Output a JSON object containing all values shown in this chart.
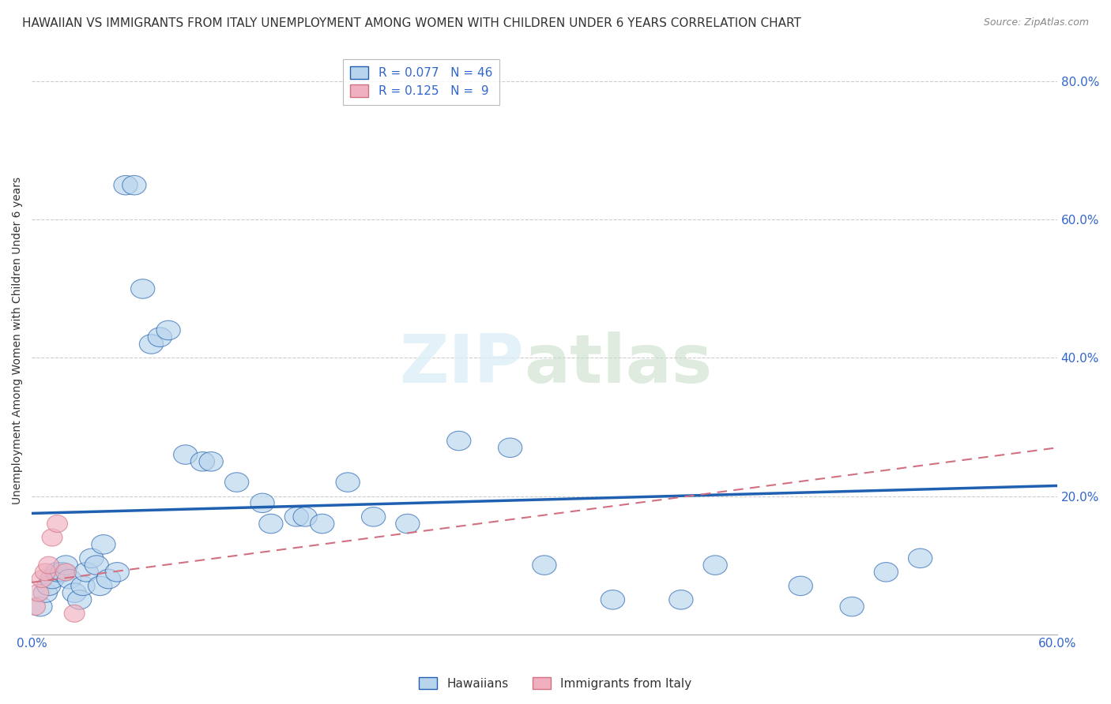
{
  "title": "HAWAIIAN VS IMMIGRANTS FROM ITALY UNEMPLOYMENT AMONG WOMEN WITH CHILDREN UNDER 6 YEARS CORRELATION CHART",
  "source": "Source: ZipAtlas.com",
  "ylabel": "Unemployment Among Women with Children Under 6 years",
  "xlim": [
    0.0,
    0.6
  ],
  "ylim": [
    0.0,
    0.85
  ],
  "yticks": [
    0.2,
    0.4,
    0.6,
    0.8
  ],
  "ytick_labels": [
    "20.0%",
    "40.0%",
    "60.0%",
    "80.0%"
  ],
  "r_hawaiian": 0.077,
  "n_hawaiian": 46,
  "r_italy": 0.125,
  "n_italy": 9,
  "hawaiian_color": "#b8d4ec",
  "italy_color": "#f0b0c0",
  "trend_hawaiian_color": "#2060b0",
  "trend_italy_color": "#d07080",
  "hawaiian_x": [
    0.005,
    0.008,
    0.01,
    0.012,
    0.015,
    0.018,
    0.02,
    0.022,
    0.025,
    0.028,
    0.03,
    0.032,
    0.035,
    0.038,
    0.04,
    0.042,
    0.045,
    0.05,
    0.055,
    0.06,
    0.065,
    0.07,
    0.075,
    0.08,
    0.09,
    0.1,
    0.105,
    0.12,
    0.135,
    0.14,
    0.155,
    0.16,
    0.17,
    0.185,
    0.2,
    0.22,
    0.25,
    0.28,
    0.3,
    0.34,
    0.38,
    0.4,
    0.45,
    0.48,
    0.5,
    0.52
  ],
  "hawaiian_y": [
    0.04,
    0.06,
    0.07,
    0.08,
    0.09,
    0.09,
    0.1,
    0.08,
    0.06,
    0.05,
    0.07,
    0.09,
    0.11,
    0.1,
    0.07,
    0.13,
    0.08,
    0.09,
    0.65,
    0.65,
    0.5,
    0.42,
    0.43,
    0.44,
    0.26,
    0.25,
    0.25,
    0.22,
    0.19,
    0.16,
    0.17,
    0.17,
    0.16,
    0.22,
    0.17,
    0.16,
    0.28,
    0.27,
    0.1,
    0.05,
    0.05,
    0.1,
    0.07,
    0.04,
    0.09,
    0.11
  ],
  "italy_x": [
    0.002,
    0.004,
    0.006,
    0.008,
    0.01,
    0.012,
    0.015,
    0.02,
    0.025
  ],
  "italy_y": [
    0.04,
    0.06,
    0.08,
    0.09,
    0.1,
    0.14,
    0.16,
    0.09,
    0.03
  ],
  "trend_h_x0": 0.0,
  "trend_h_x1": 0.6,
  "trend_h_y0": 0.175,
  "trend_h_y1": 0.215,
  "trend_i_x0": 0.0,
  "trend_i_x1": 0.6,
  "trend_i_y0": 0.075,
  "trend_i_y1": 0.27,
  "grid_color": "#cccccc",
  "axis_color": "#3366cc",
  "tick_fontsize": 11,
  "title_fontsize": 11,
  "source_fontsize": 9,
  "legend_fontsize": 11
}
